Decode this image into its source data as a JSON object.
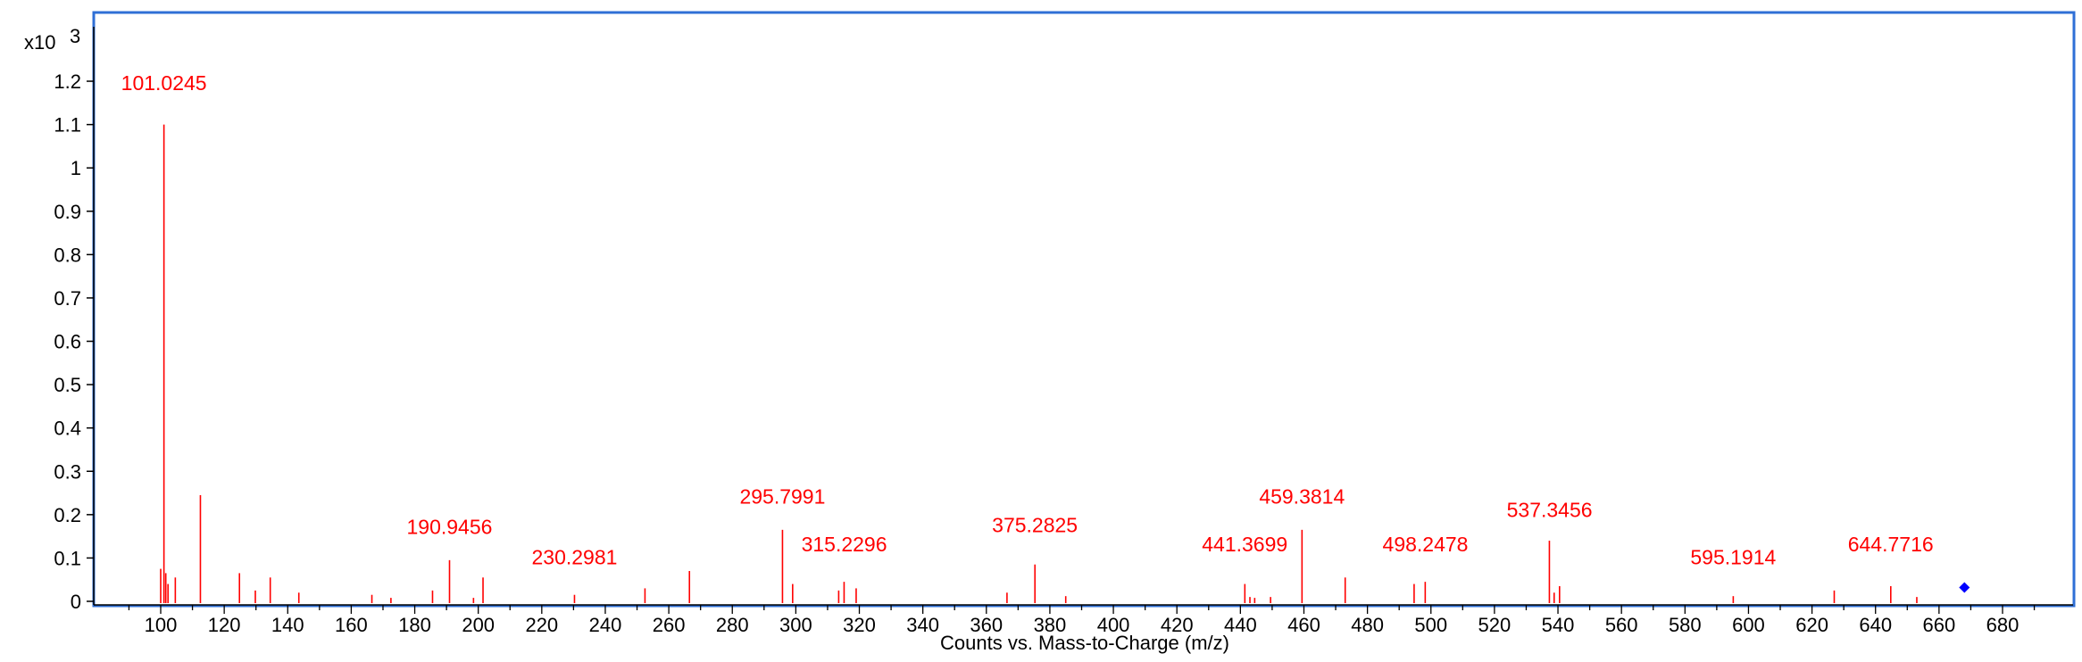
{
  "colors": {
    "frame": "#2f6fd6",
    "peak": "#ff0000",
    "marker": "#0000ff",
    "axis": "#000000"
  },
  "chart_data": {
    "type": "bar",
    "title": "",
    "xlabel": "Counts vs. Mass-to-Charge (m/z)",
    "ylabel": "",
    "y_scale_label": "x10",
    "y_scale_exponent": "3",
    "xlim": [
      80,
      692
    ],
    "ylim": [
      0,
      1.3
    ],
    "xticks": [
      100,
      120,
      140,
      160,
      180,
      200,
      220,
      240,
      260,
      280,
      300,
      320,
      340,
      360,
      380,
      400,
      420,
      440,
      460,
      480,
      500,
      520,
      540,
      560,
      580,
      600,
      620,
      640,
      660,
      680
    ],
    "yticks": [
      0,
      0.1,
      0.2,
      0.3,
      0.4,
      0.5,
      0.6,
      0.7,
      0.8,
      0.9,
      1,
      1.1,
      1.2
    ],
    "ytick_labels": [
      "0",
      "0.1",
      "0.2",
      "0.3",
      "0.4",
      "0.5",
      "0.6",
      "0.7",
      "0.8",
      "0.9",
      "1",
      "1.1",
      "1.2"
    ],
    "peaks": [
      {
        "mz": 100.0,
        "intensity": 0.075
      },
      {
        "mz": 101.02,
        "intensity": 1.1
      },
      {
        "mz": 101.6,
        "intensity": 0.065
      },
      {
        "mz": 102.3,
        "intensity": 0.04
      },
      {
        "mz": 104.6,
        "intensity": 0.055
      },
      {
        "mz": 112.5,
        "intensity": 0.245
      },
      {
        "mz": 124.8,
        "intensity": 0.065
      },
      {
        "mz": 129.8,
        "intensity": 0.025
      },
      {
        "mz": 134.5,
        "intensity": 0.055
      },
      {
        "mz": 143.5,
        "intensity": 0.02
      },
      {
        "mz": 166.5,
        "intensity": 0.015
      },
      {
        "mz": 172.5,
        "intensity": 0.008
      },
      {
        "mz": 185.6,
        "intensity": 0.025
      },
      {
        "mz": 190.95,
        "intensity": 0.095
      },
      {
        "mz": 198.5,
        "intensity": 0.008
      },
      {
        "mz": 201.5,
        "intensity": 0.055
      },
      {
        "mz": 230.3,
        "intensity": 0.015
      },
      {
        "mz": 252.5,
        "intensity": 0.03
      },
      {
        "mz": 266.5,
        "intensity": 0.07
      },
      {
        "mz": 295.8,
        "intensity": 0.165
      },
      {
        "mz": 299.0,
        "intensity": 0.04
      },
      {
        "mz": 313.5,
        "intensity": 0.025
      },
      {
        "mz": 315.2,
        "intensity": 0.045
      },
      {
        "mz": 319.0,
        "intensity": 0.03
      },
      {
        "mz": 366.5,
        "intensity": 0.02
      },
      {
        "mz": 375.3,
        "intensity": 0.085
      },
      {
        "mz": 385.0,
        "intensity": 0.012
      },
      {
        "mz": 441.4,
        "intensity": 0.04
      },
      {
        "mz": 443.0,
        "intensity": 0.01
      },
      {
        "mz": 444.5,
        "intensity": 0.008
      },
      {
        "mz": 449.5,
        "intensity": 0.01
      },
      {
        "mz": 459.4,
        "intensity": 0.165
      },
      {
        "mz": 473.0,
        "intensity": 0.055
      },
      {
        "mz": 494.7,
        "intensity": 0.04
      },
      {
        "mz": 498.2,
        "intensity": 0.045
      },
      {
        "mz": 537.3,
        "intensity": 0.14
      },
      {
        "mz": 538.8,
        "intensity": 0.02
      },
      {
        "mz": 540.5,
        "intensity": 0.035
      },
      {
        "mz": 595.2,
        "intensity": 0.012
      },
      {
        "mz": 627.0,
        "intensity": 0.025
      },
      {
        "mz": 644.8,
        "intensity": 0.035
      },
      {
        "mz": 653.0,
        "intensity": 0.01
      }
    ],
    "annotations": [
      {
        "text": "101.0245",
        "mz": 101.0245,
        "level": 1.18
      },
      {
        "text": "190.9456",
        "mz": 190.9456,
        "level": 0.155
      },
      {
        "text": "230.2981",
        "mz": 230.2981,
        "level": 0.085
      },
      {
        "text": "295.7991",
        "mz": 295.7991,
        "level": 0.225
      },
      {
        "text": "315.2296",
        "mz": 315.2296,
        "level": 0.115
      },
      {
        "text": "375.2825",
        "mz": 375.2825,
        "level": 0.16
      },
      {
        "text": "441.3699",
        "mz": 441.3699,
        "level": 0.115
      },
      {
        "text": "459.3814",
        "mz": 459.3814,
        "level": 0.225
      },
      {
        "text": "498.2478",
        "mz": 498.2478,
        "level": 0.115
      },
      {
        "text": "537.3456",
        "mz": 537.3456,
        "level": 0.195
      },
      {
        "text": "595.1914",
        "mz": 595.1914,
        "level": 0.085
      },
      {
        "text": "644.7716",
        "mz": 644.7716,
        "level": 0.115
      }
    ],
    "marker": {
      "mz": 668.0,
      "intensity": 0.032,
      "shape": "diamond"
    },
    "grid": false,
    "legend": "none"
  }
}
